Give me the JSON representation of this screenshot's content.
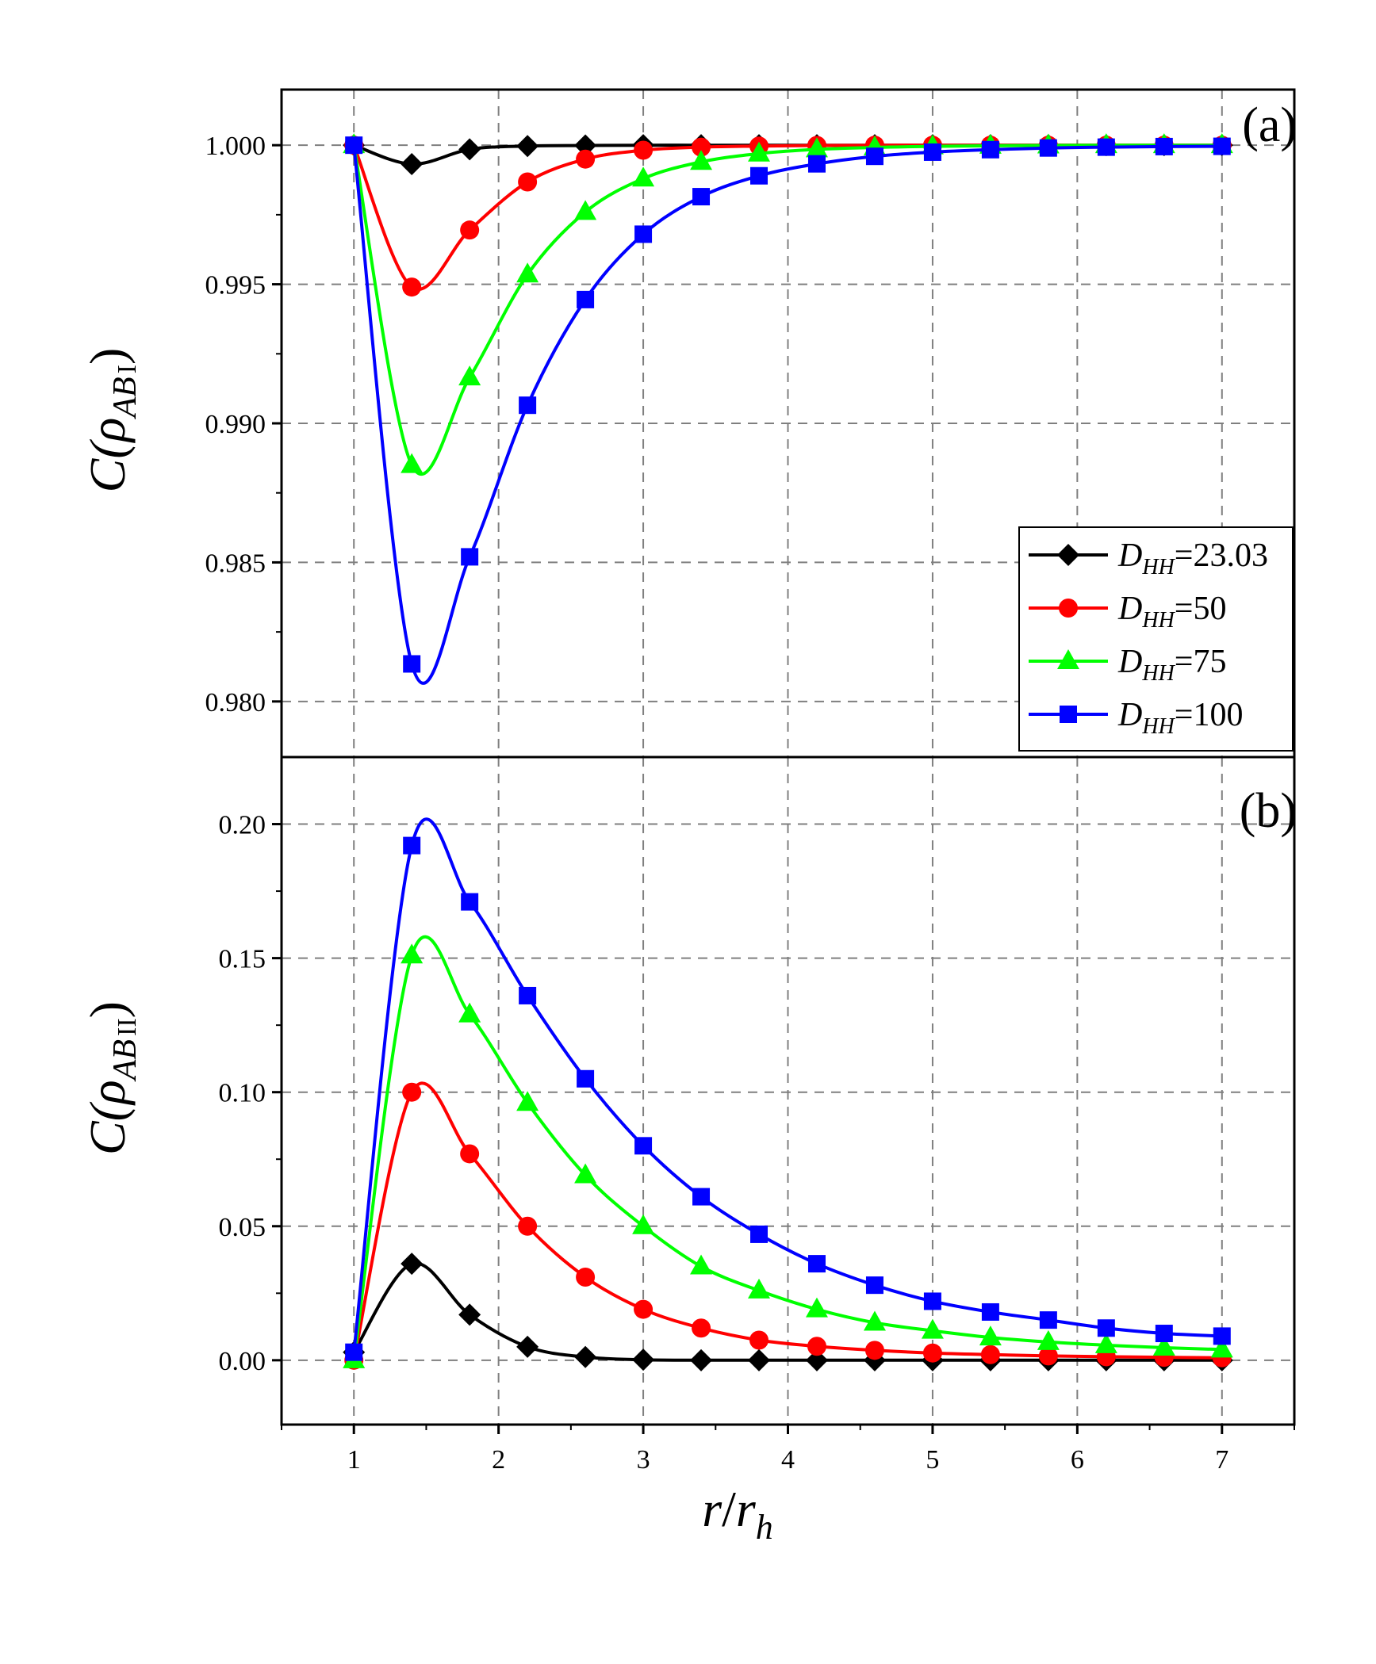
{
  "chart_data": {
    "type": "line",
    "xlabel": {
      "main": "r",
      "slash": "/",
      "sub_main": "r",
      "sub": "h"
    },
    "x_ticks": [
      1,
      2,
      3,
      4,
      5,
      6,
      7
    ],
    "xlim": [
      0.5,
      7.5
    ],
    "x": [
      1.0,
      1.4,
      1.8,
      2.2,
      2.6,
      3.0,
      3.4,
      3.8,
      4.2,
      4.6,
      5.0,
      5.4,
      5.8,
      6.2,
      6.6,
      7.0
    ],
    "series_meta": [
      {
        "name": "D_HH=23.03",
        "sym": "D",
        "sub": "HH",
        "val": "=23.03",
        "color": "#000000",
        "marker": "diamond"
      },
      {
        "name": "D_HH=50",
        "sym": "D",
        "sub": "HH",
        "val": "=50",
        "color": "#ff0000",
        "marker": "circle"
      },
      {
        "name": "D_HH=75",
        "sym": "D",
        "sub": "HH",
        "val": "=75",
        "color": "#00ff00",
        "marker": "triangle"
      },
      {
        "name": "D_HH=100",
        "sym": "D",
        "sub": "HH",
        "val": "=100",
        "color": "#0000ff",
        "marker": "square"
      }
    ],
    "panels": [
      {
        "id": "a",
        "label": "(a)",
        "ylabel": {
          "pre": "C(",
          "rho": "ρ",
          "sub": "AB",
          "roman": "I",
          "post": ")"
        },
        "ylim": [
          0.978,
          1.002
        ],
        "y_ticks": [
          0.98,
          0.985,
          0.99,
          0.995,
          1.0
        ],
        "y_tick_labels": [
          "0.980",
          "0.985",
          "0.990",
          "0.995",
          "1.000"
        ],
        "values": [
          [
            1.0,
            0.99932,
            0.99985,
            0.99997,
            0.99999,
            1.0,
            1.0,
            1.0,
            1.0,
            1.0,
            1.0,
            1.0,
            1.0,
            1.0,
            1.0,
            1.0
          ],
          [
            1.0,
            0.9949,
            0.99695,
            0.99868,
            0.9995,
            0.99982,
            0.99993,
            0.99997,
            0.99999,
            1.0,
            1.0,
            1.0,
            1.0,
            1.0,
            1.0,
            1.0
          ],
          [
            1.0,
            0.9885,
            0.99165,
            0.99535,
            0.9976,
            0.9988,
            0.9994,
            0.9997,
            0.99985,
            0.99992,
            0.99996,
            0.99998,
            0.99999,
            1.0,
            1.0,
            1.0
          ],
          [
            1.0,
            0.98135,
            0.9852,
            0.99065,
            0.99445,
            0.9968,
            0.99815,
            0.9989,
            0.99933,
            0.9996,
            0.99975,
            0.99984,
            0.9999,
            0.99993,
            0.99995,
            0.99996
          ]
        ]
      },
      {
        "id": "b",
        "label": "(b)",
        "ylabel": {
          "pre": "C(",
          "rho": "ρ",
          "sub": "AB",
          "roman": "II",
          "post": ")"
        },
        "ylim": [
          -0.024,
          0.225
        ],
        "y_ticks": [
          0.0,
          0.05,
          0.1,
          0.15,
          0.2
        ],
        "y_tick_labels": [
          "0.00",
          "0.05",
          "0.10",
          "0.15",
          "0.20"
        ],
        "values": [
          [
            0.003,
            0.036,
            0.017,
            0.005,
            0.0012,
            0.0002,
            0.0,
            0.0,
            0.0,
            0.0,
            0.0,
            0.0,
            0.0,
            0.0,
            0.0,
            0.0
          ],
          [
            0.0,
            0.1,
            0.077,
            0.05,
            0.031,
            0.019,
            0.012,
            0.0075,
            0.0052,
            0.0037,
            0.0027,
            0.0021,
            0.0016,
            0.0013,
            0.0011,
            0.0009
          ],
          [
            0.0,
            0.151,
            0.129,
            0.096,
            0.069,
            0.05,
            0.035,
            0.026,
            0.019,
            0.014,
            0.011,
            0.0085,
            0.0068,
            0.0056,
            0.0047,
            0.004
          ],
          [
            0.003,
            0.192,
            0.171,
            0.136,
            0.105,
            0.08,
            0.061,
            0.047,
            0.036,
            0.028,
            0.022,
            0.018,
            0.015,
            0.012,
            0.01,
            0.009
          ]
        ]
      }
    ]
  }
}
